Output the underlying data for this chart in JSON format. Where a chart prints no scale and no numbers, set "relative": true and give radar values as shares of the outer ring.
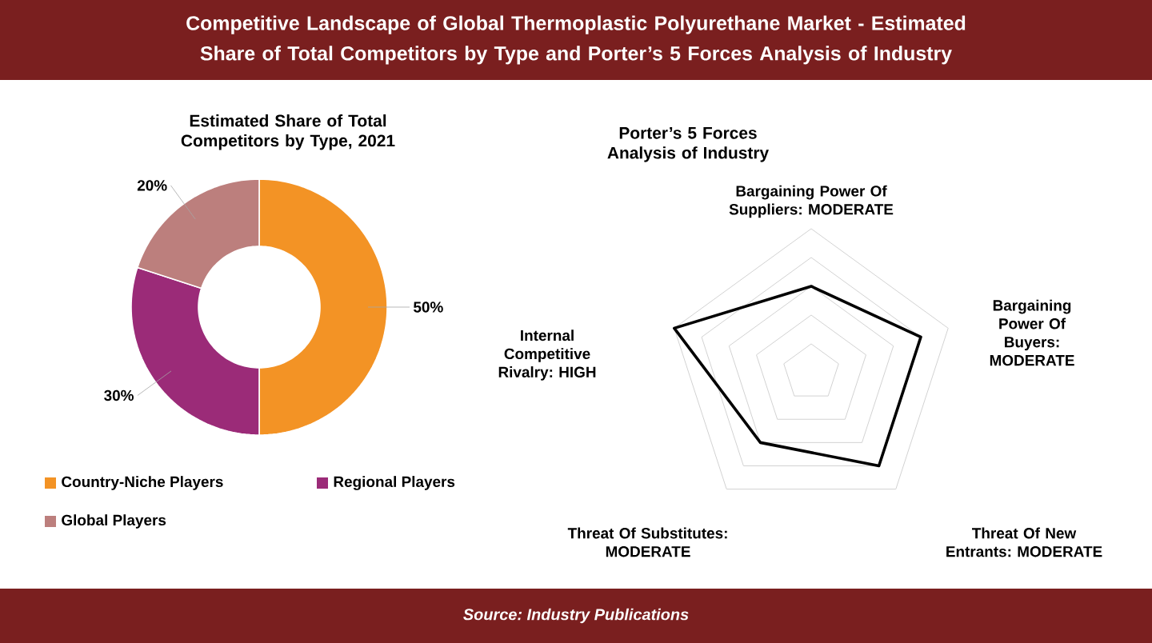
{
  "chart_data": [
    {
      "type": "donut",
      "title": "Estimated Share of Total Competitors by Type, 2021",
      "categories": [
        "Country-Niche Players",
        "Regional Players",
        "Global Players"
      ],
      "values": [
        50,
        30,
        20
      ],
      "value_labels": [
        "50%",
        "30%",
        "20%"
      ],
      "colors": [
        "#f39325",
        "#9b2b78",
        "#bc7f7d"
      ],
      "legend": "bottom",
      "annotations": [
        "Competitive Landscape of Global Thermoplastic Polyurethane Market - Estimated Share of Total Competitors by Type and Porter’s 5 Forces Analysis of Industry",
        "Source: Industry Publications"
      ]
    },
    {
      "type": "radar",
      "title": "Porter’s 5 Forces Analysis of Industry",
      "categories": [
        "Bargaining Power Of Suppliers: MODERATE",
        "Bargaining Power Of Buyers: MODERATE",
        "Threat Of New Entrants: MODERATE",
        "Threat Of Substitutes: MODERATE",
        "Internal Competitive Rivalry: HIGH"
      ],
      "relative": true,
      "grid": true,
      "series": [
        {
          "color": "#000000",
          "values": [
            0.6,
            0.8,
            0.8,
            0.6,
            1.0
          ]
        }
      ]
    }
  ]
}
